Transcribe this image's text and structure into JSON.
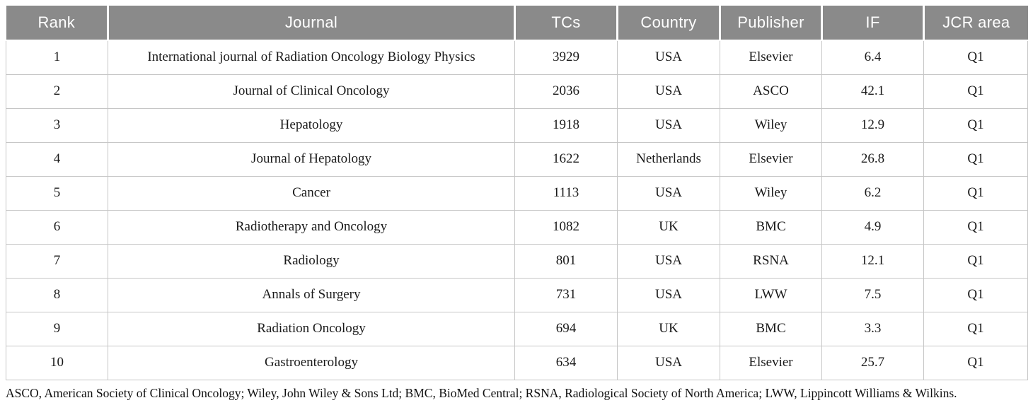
{
  "table": {
    "columns": [
      {
        "key": "rank",
        "label": "Rank"
      },
      {
        "key": "journal",
        "label": "Journal"
      },
      {
        "key": "tcs",
        "label": "TCs"
      },
      {
        "key": "country",
        "label": "Country"
      },
      {
        "key": "publisher",
        "label": "Publisher"
      },
      {
        "key": "impact",
        "label": "IF"
      },
      {
        "key": "jcr",
        "label": "JCR area"
      }
    ],
    "rows": [
      {
        "rank": "1",
        "journal": "International journal of Radiation Oncology Biology Physics",
        "tcs": "3929",
        "country": "USA",
        "publisher": "Elsevier",
        "impact": "6.4",
        "jcr": "Q1"
      },
      {
        "rank": "2",
        "journal": "Journal of Clinical Oncology",
        "tcs": "2036",
        "country": "USA",
        "publisher": "ASCO",
        "impact": "42.1",
        "jcr": "Q1"
      },
      {
        "rank": "3",
        "journal": "Hepatology",
        "tcs": "1918",
        "country": "USA",
        "publisher": "Wiley",
        "impact": "12.9",
        "jcr": "Q1"
      },
      {
        "rank": "4",
        "journal": "Journal of Hepatology",
        "tcs": "1622",
        "country": "Netherlands",
        "publisher": "Elsevier",
        "impact": "26.8",
        "jcr": "Q1"
      },
      {
        "rank": "5",
        "journal": "Cancer",
        "tcs": "1113",
        "country": "USA",
        "publisher": "Wiley",
        "impact": "6.2",
        "jcr": "Q1"
      },
      {
        "rank": "6",
        "journal": "Radiotherapy and Oncology",
        "tcs": "1082",
        "country": "UK",
        "publisher": "BMC",
        "impact": "4.9",
        "jcr": "Q1"
      },
      {
        "rank": "7",
        "journal": "Radiology",
        "tcs": "801",
        "country": "USA",
        "publisher": "RSNA",
        "impact": "12.1",
        "jcr": "Q1"
      },
      {
        "rank": "8",
        "journal": "Annals of Surgery",
        "tcs": "731",
        "country": "USA",
        "publisher": "LWW",
        "impact": "7.5",
        "jcr": "Q1"
      },
      {
        "rank": "9",
        "journal": "Radiation Oncology",
        "tcs": "694",
        "country": "UK",
        "publisher": "BMC",
        "impact": "3.3",
        "jcr": "Q1"
      },
      {
        "rank": "10",
        "journal": "Gastroenterology",
        "tcs": "634",
        "country": "USA",
        "publisher": "Elsevier",
        "impact": "25.7",
        "jcr": "Q1"
      }
    ],
    "footnote": "ASCO, American Society of Clinical Oncology; Wiley, John Wiley & Sons Ltd; BMC, BioMed Central; RSNA, Radiological Society of North America; LWW, Lippincott Williams & Wilkins."
  },
  "colors": {
    "header_bg": "#8a8a8a",
    "header_text": "#ffffff",
    "border": "#c6c6c6",
    "body_text": "#1a1a1a"
  }
}
